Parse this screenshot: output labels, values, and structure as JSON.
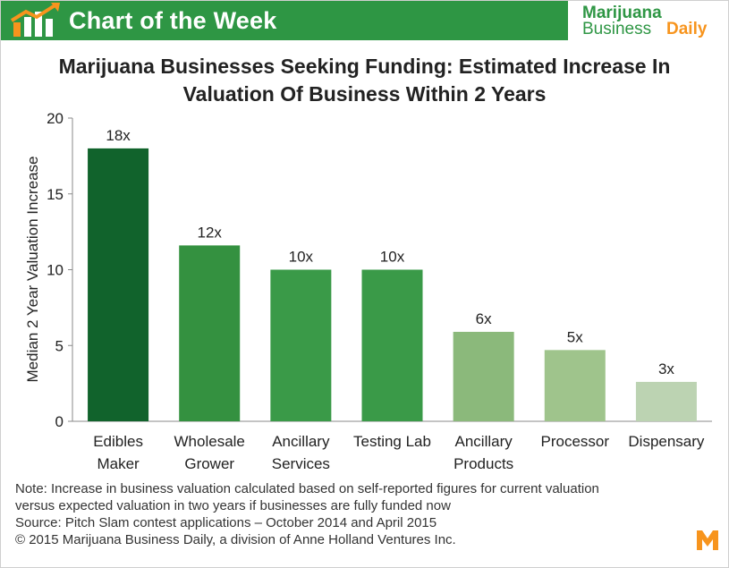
{
  "banner": {
    "title": "Chart of the Week",
    "brand_line1": "Marijuana",
    "brand_line2a": "Business",
    "brand_line2b": "Daily"
  },
  "chart_data": {
    "type": "bar",
    "title_line1": "Marijuana Businesses Seeking Funding: Estimated Increase In",
    "title_line2": "Valuation Of Business Within 2 Years",
    "ylabel": "Median 2 Year Valuation Increase",
    "ylim": [
      0,
      20
    ],
    "yticks": [
      "0",
      "5",
      "10",
      "15",
      "20"
    ],
    "categories": [
      [
        "Edibles",
        "Maker"
      ],
      [
        "Wholesale",
        "Grower"
      ],
      [
        "Ancillary",
        "Services"
      ],
      [
        "Testing Lab"
      ],
      [
        "Ancillary",
        "Products"
      ],
      [
        "Processor"
      ],
      [
        "Dispensary"
      ]
    ],
    "values": [
      18,
      11.6,
      10,
      10,
      5.9,
      4.7,
      2.6
    ],
    "data_labels": [
      "18x",
      "12x",
      "10x",
      "10x",
      "6x",
      "5x",
      "3x"
    ],
    "colors": [
      "#11632c",
      "#349140",
      "#3a9a48",
      "#3a9a48",
      "#8bb97b",
      "#9fc48c",
      "#bcd3b2"
    ],
    "grid": false
  },
  "notes": {
    "line1": "Note:  Increase in business valuation calculated based on self-reported  figures for current valuation",
    "line2": "versus expected valuation in two years if businesses are fully funded now",
    "line3": "Source: Pitch Slam contest applications – October 2014 and April 2015",
    "line4": "© 2015 Marijuana Business Daily, a division of Anne Holland Ventures Inc."
  },
  "icons": {
    "banner_icon": "rising-bar-chart-icon",
    "corner_logo": "m-logo-icon"
  },
  "colors": {
    "banner_green": "#2e9644",
    "brand_orange": "#f7941d"
  }
}
